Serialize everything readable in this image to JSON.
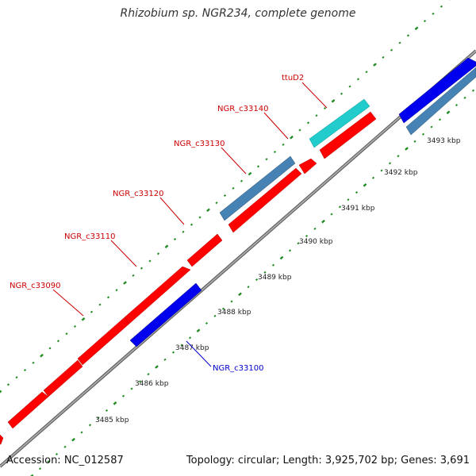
{
  "title": "Rhizobium sp. NGR234, complete genome",
  "footer": {
    "accession": "Accession: NC_012587",
    "topology": "Topology: circular; Length: 3,925,702 bp; Genes: 3,691"
  },
  "colors": {
    "forward_gene": "#ff0000",
    "reverse_gene": "#0000ee",
    "steelblue_gene": "#4682b4",
    "cyan_gene": "#22cccc",
    "backbone": "#808080",
    "dots": "#228b22",
    "forward_label": "#cc0000",
    "reverse_label": "#0000cc"
  },
  "ticks": [
    {
      "label": "3485 kbp"
    },
    {
      "label": "3486 kbp"
    },
    {
      "label": "3487 kbp"
    },
    {
      "label": "3488 kbp"
    },
    {
      "label": "3489 kbp"
    },
    {
      "label": "3490 kbp"
    },
    {
      "label": "3491 kbp"
    },
    {
      "label": "3492 kbp"
    },
    {
      "label": "3493 kbp"
    }
  ],
  "gene_labels": [
    {
      "name": "NGR_c33090",
      "strand": "forward"
    },
    {
      "name": "NGR_c33110",
      "strand": "forward"
    },
    {
      "name": "NGR_c33120",
      "strand": "forward"
    },
    {
      "name": "NGR_c33130",
      "strand": "forward"
    },
    {
      "name": "NGR_c33140",
      "strand": "forward"
    },
    {
      "name": "ttuD2",
      "strand": "forward"
    },
    {
      "name": "NGR_c33100",
      "strand": "reverse"
    }
  ]
}
